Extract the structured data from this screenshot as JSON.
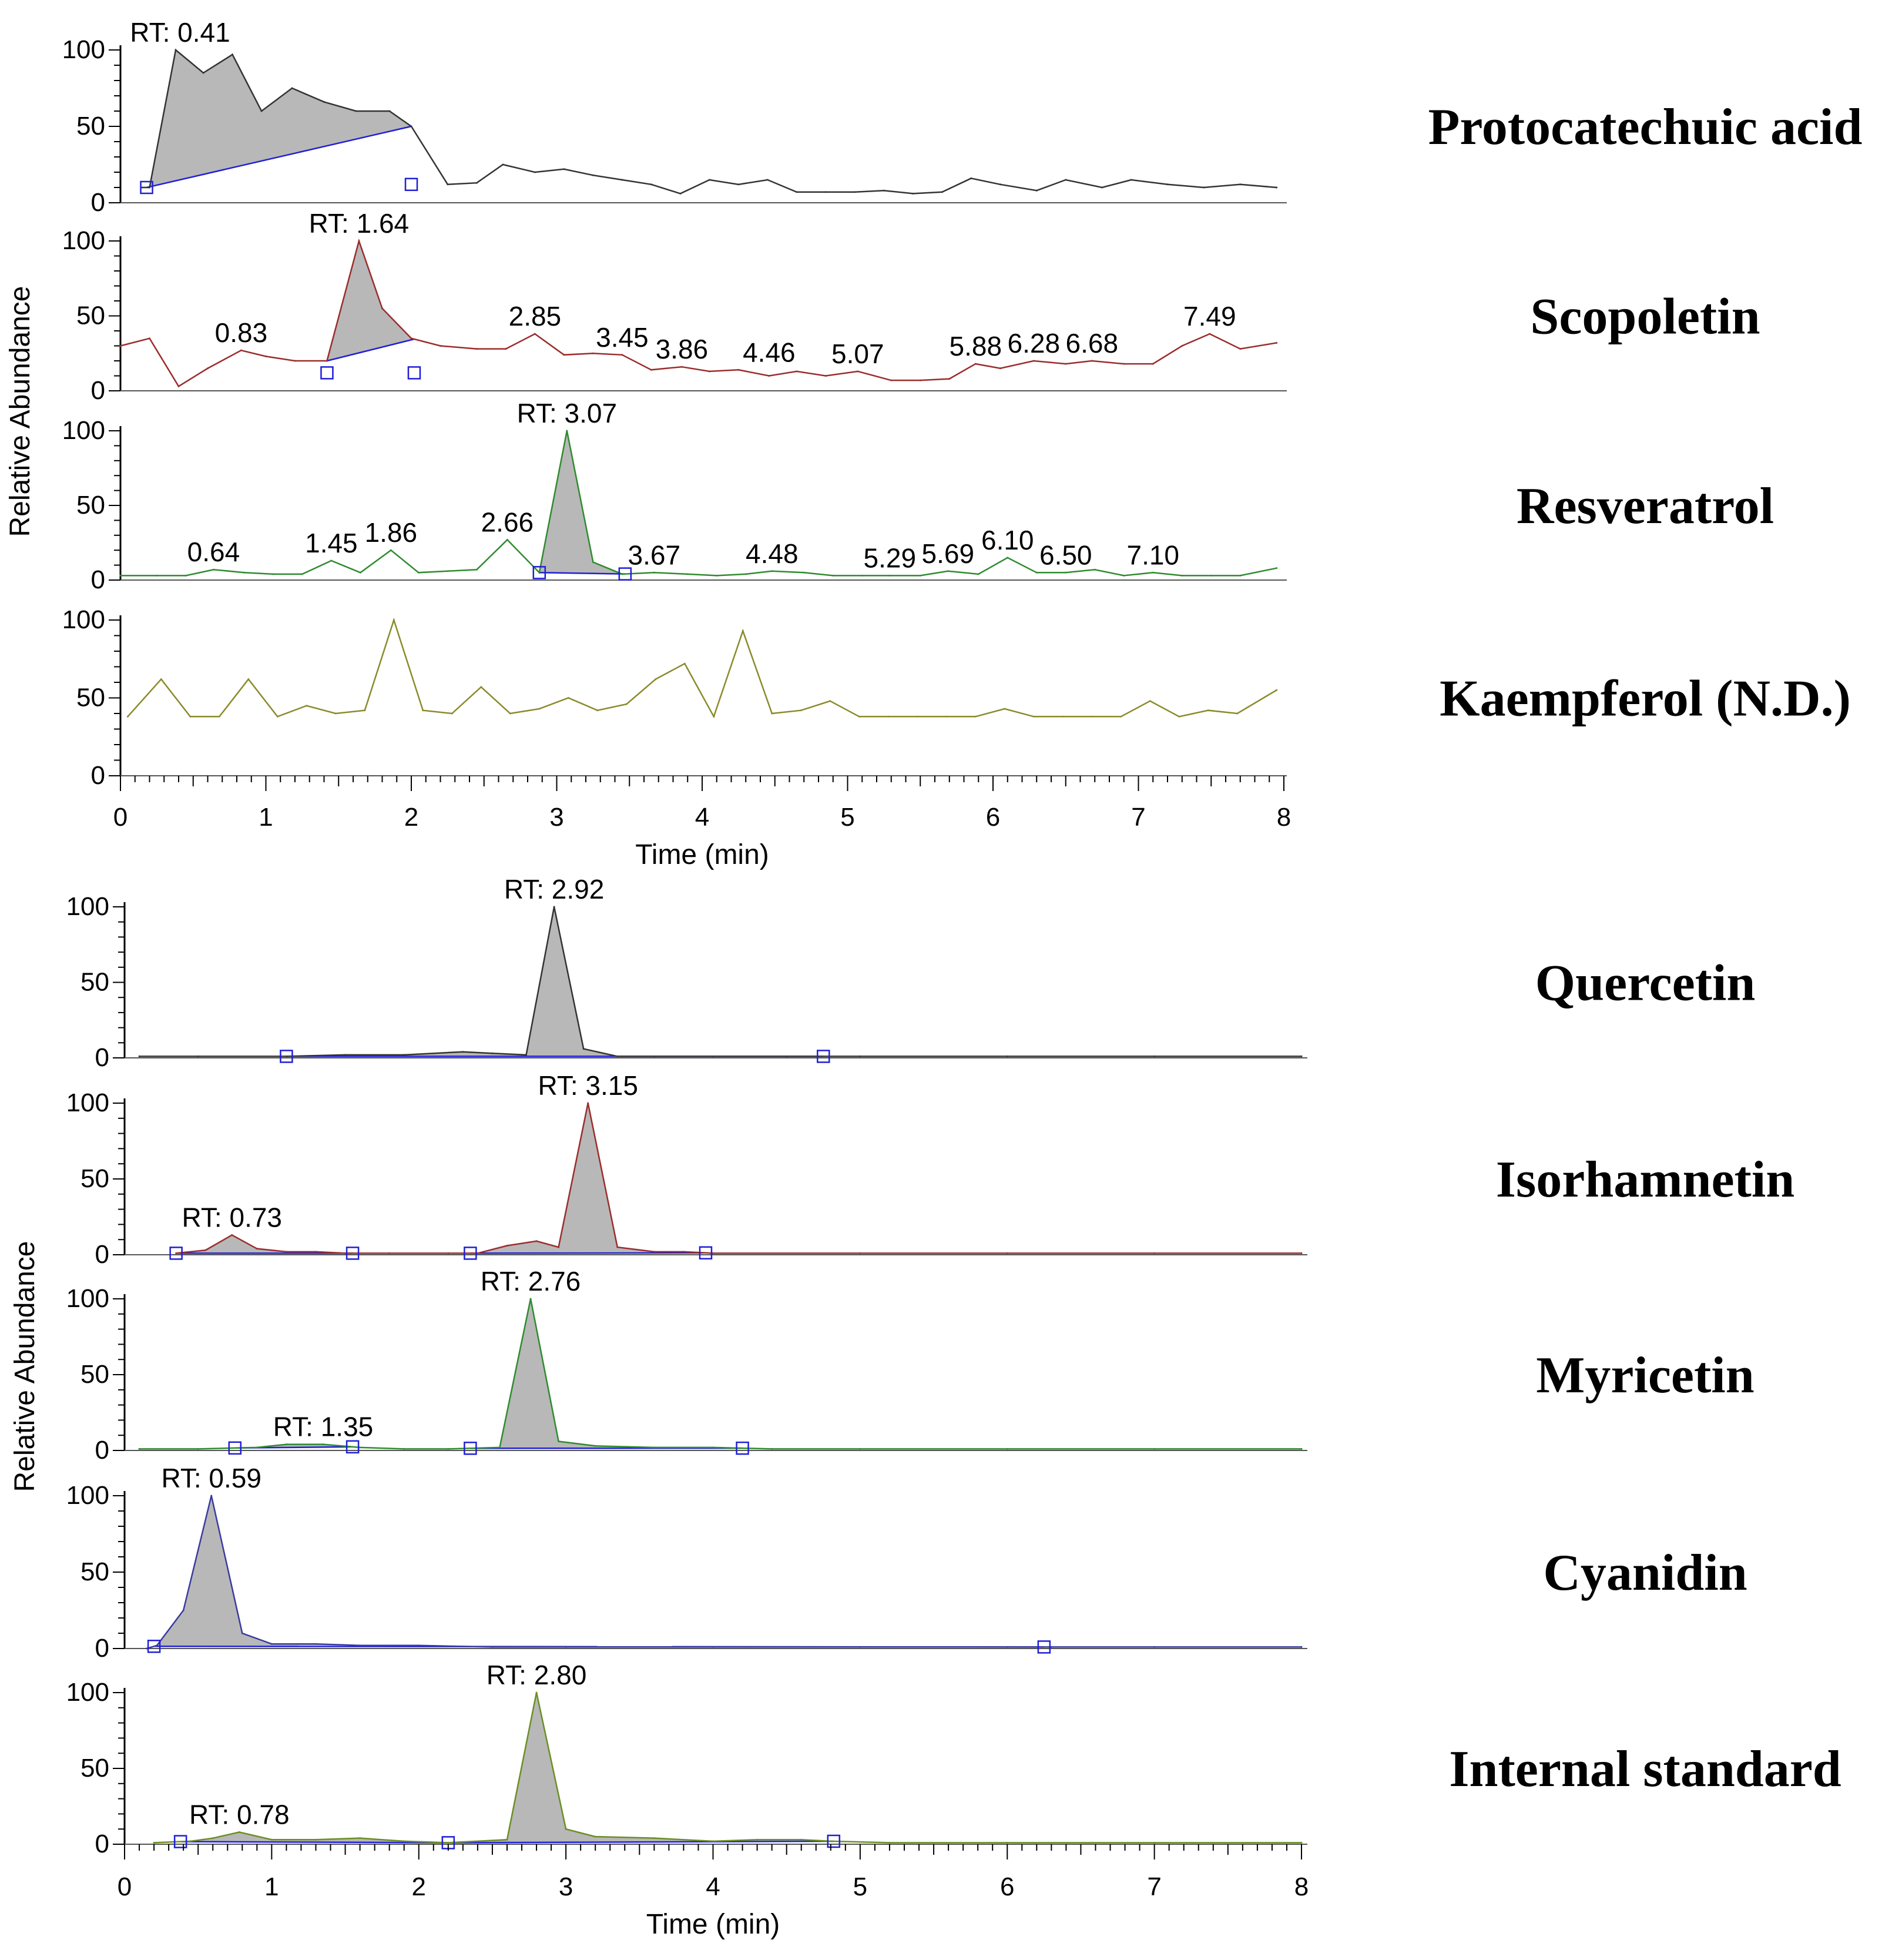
{
  "figure": {
    "colors": {
      "fill": "#b8b8b8",
      "axis": "#000000",
      "baseline": "#1f1fd6"
    },
    "groups": [
      {
        "xlabel": "Time (min)",
        "ylabel": "Relative Abundance",
        "x_range": [
          0,
          8
        ],
        "x_ticks": [
          "0",
          "1",
          "2",
          "3",
          "4",
          "5",
          "6",
          "7",
          "8"
        ],
        "y_ticks": [
          "0",
          "50",
          "100"
        ]
      },
      {
        "xlabel": "Time (min)",
        "ylabel": "Relative Abundance",
        "x_range": [
          0,
          8
        ],
        "x_ticks": [
          "0",
          "1",
          "2",
          "3",
          "4",
          "5",
          "6",
          "7",
          "8"
        ],
        "y_ticks": [
          "0",
          "50",
          "100"
        ]
      }
    ]
  },
  "chart_data": [
    {
      "type": "line",
      "group": 0,
      "title": "Protocatechuic acid",
      "color": "#333333",
      "xlabel": "Time (min)",
      "ylabel": "Relative Abundance",
      "xlim": [
        0,
        8
      ],
      "ylim": [
        0,
        100
      ],
      "x": [
        0.15,
        0.2,
        0.38,
        0.57,
        0.77,
        0.97,
        1.18,
        1.4,
        1.62,
        1.85,
        2.0,
        2.25,
        2.45,
        2.63,
        2.85,
        3.05,
        3.25,
        3.45,
        3.65,
        3.85,
        4.05,
        4.25,
        4.45,
        4.65,
        4.85,
        5.05,
        5.25,
        5.45,
        5.65,
        5.85,
        6.05,
        6.3,
        6.5,
        6.75,
        6.95,
        7.2,
        7.45,
        7.7,
        7.95
      ],
      "y": [
        10,
        10,
        100,
        85,
        97,
        60,
        75,
        66,
        60,
        60,
        50,
        12,
        13,
        25,
        20,
        22,
        18,
        15,
        12,
        6,
        15,
        12,
        15,
        7,
        7,
        7,
        8,
        6,
        7,
        16,
        12,
        8,
        15,
        10,
        15,
        12,
        10,
        12,
        10
      ],
      "peak_labels": [
        {
          "x": 0.41,
          "y": 100,
          "text": "RT: 0.41"
        }
      ],
      "shaded": [
        {
          "from": 0.18,
          "to": 2.0
        }
      ],
      "boundary_markers": [
        0.18,
        2.0
      ]
    },
    {
      "type": "line",
      "group": 0,
      "title": "Scopoletin",
      "color": "#9b2c2c",
      "xlabel": "Time (min)",
      "ylabel": "Relative Abundance",
      "xlim": [
        0,
        8
      ],
      "ylim": [
        0,
        100
      ],
      "x": [
        0.0,
        0.2,
        0.4,
        0.6,
        0.83,
        1.0,
        1.2,
        1.42,
        1.64,
        1.8,
        2.0,
        2.2,
        2.45,
        2.65,
        2.85,
        3.05,
        3.25,
        3.45,
        3.65,
        3.86,
        4.05,
        4.25,
        4.46,
        4.65,
        4.85,
        5.07,
        5.3,
        5.5,
        5.7,
        5.88,
        6.05,
        6.28,
        6.5,
        6.68,
        6.9,
        7.1,
        7.3,
        7.49,
        7.7,
        7.95
      ],
      "y": [
        30,
        35,
        3,
        15,
        27,
        23,
        20,
        20,
        100,
        55,
        35,
        30,
        28,
        28,
        38,
        24,
        25,
        24,
        14,
        16,
        13,
        14,
        10,
        13,
        10,
        13,
        7,
        7,
        8,
        18,
        15,
        20,
        18,
        20,
        18,
        18,
        30,
        38,
        28,
        32
      ],
      "peak_labels": [
        {
          "x": 1.64,
          "y": 100,
          "text": "RT: 1.64"
        },
        {
          "x": 0.83,
          "y": 27,
          "text": "0.83"
        },
        {
          "x": 2.85,
          "y": 38,
          "text": "2.85"
        },
        {
          "x": 3.45,
          "y": 24,
          "text": "3.45"
        },
        {
          "x": 3.86,
          "y": 16,
          "text": "3.86"
        },
        {
          "x": 4.46,
          "y": 14,
          "text": "4.46"
        },
        {
          "x": 5.07,
          "y": 13,
          "text": "5.07"
        },
        {
          "x": 5.88,
          "y": 18,
          "text": "5.88"
        },
        {
          "x": 6.28,
          "y": 20,
          "text": "6.28"
        },
        {
          "x": 6.68,
          "y": 20,
          "text": "6.68"
        },
        {
          "x": 7.49,
          "y": 38,
          "text": "7.49"
        }
      ],
      "shaded": [
        {
          "from": 1.42,
          "to": 2.02
        }
      ],
      "boundary_markers": [
        1.42,
        2.02
      ]
    },
    {
      "type": "line",
      "group": 0,
      "title": "Resveratrol",
      "color": "#2e8b2e",
      "xlabel": "Time (min)",
      "ylabel": "Relative Abundance",
      "xlim": [
        0,
        8
      ],
      "ylim": [
        0,
        100
      ],
      "x": [
        0.0,
        0.25,
        0.45,
        0.64,
        0.85,
        1.05,
        1.25,
        1.45,
        1.65,
        1.86,
        2.05,
        2.25,
        2.45,
        2.66,
        2.88,
        3.07,
        3.25,
        3.45,
        3.67,
        3.9,
        4.1,
        4.3,
        4.48,
        4.7,
        4.9,
        5.1,
        5.29,
        5.5,
        5.69,
        5.9,
        6.1,
        6.3,
        6.5,
        6.7,
        6.9,
        7.1,
        7.3,
        7.5,
        7.7,
        7.95
      ],
      "y": [
        3,
        3,
        3,
        7,
        5,
        4,
        4,
        13,
        5,
        20,
        5,
        6,
        7,
        27,
        5,
        100,
        12,
        4,
        5,
        4,
        3,
        4,
        6,
        5,
        3,
        3,
        3,
        3,
        6,
        4,
        15,
        5,
        5,
        7,
        3,
        5,
        3,
        3,
        3,
        8
      ],
      "peak_labels": [
        {
          "x": 3.07,
          "y": 100,
          "text": "RT: 3.07"
        },
        {
          "x": 0.64,
          "y": 7,
          "text": "0.64"
        },
        {
          "x": 1.45,
          "y": 13,
          "text": "1.45"
        },
        {
          "x": 1.86,
          "y": 20,
          "text": "1.86"
        },
        {
          "x": 2.66,
          "y": 27,
          "text": "2.66"
        },
        {
          "x": 3.67,
          "y": 5,
          "text": "3.67"
        },
        {
          "x": 4.48,
          "y": 6,
          "text": "4.48"
        },
        {
          "x": 5.29,
          "y": 3,
          "text": "5.29"
        },
        {
          "x": 5.69,
          "y": 6,
          "text": "5.69"
        },
        {
          "x": 6.1,
          "y": 15,
          "text": "6.10"
        },
        {
          "x": 6.5,
          "y": 5,
          "text": "6.50"
        },
        {
          "x": 7.1,
          "y": 5,
          "text": "7.10"
        }
      ],
      "shaded": [
        {
          "from": 2.88,
          "to": 3.47
        }
      ],
      "boundary_markers": [
        2.88,
        3.47
      ]
    },
    {
      "type": "line",
      "group": 0,
      "title": "Kaempferol (N.D.)",
      "color": "#8a8a2a",
      "xlabel": "Time (min)",
      "ylabel": "Relative Abundance",
      "xlim": [
        0,
        8
      ],
      "ylim": [
        0,
        100
      ],
      "x": [
        0.05,
        0.28,
        0.48,
        0.68,
        0.88,
        1.08,
        1.28,
        1.48,
        1.68,
        1.88,
        2.08,
        2.28,
        2.48,
        2.68,
        2.88,
        3.08,
        3.28,
        3.48,
        3.68,
        3.88,
        4.08,
        4.28,
        4.48,
        4.68,
        4.88,
        5.08,
        5.28,
        5.48,
        5.68,
        5.88,
        6.08,
        6.28,
        6.48,
        6.68,
        6.88,
        7.08,
        7.28,
        7.48,
        7.68,
        7.95
      ],
      "y": [
        38,
        62,
        38,
        38,
        62,
        38,
        45,
        40,
        42,
        100,
        42,
        40,
        57,
        40,
        43,
        50,
        42,
        46,
        62,
        72,
        38,
        93,
        40,
        42,
        48,
        38,
        38,
        38,
        38,
        38,
        43,
        38,
        38,
        38,
        38,
        48,
        38,
        42,
        40,
        55
      ],
      "peak_labels": [],
      "shaded": [],
      "boundary_markers": []
    },
    {
      "type": "line",
      "group": 1,
      "title": "Quercetin",
      "color": "#333333",
      "xlabel": "Time (min)",
      "ylabel": "Relative Abundance",
      "xlim": [
        0,
        8
      ],
      "ylim": [
        0,
        100
      ],
      "x": [
        0.1,
        0.5,
        1.1,
        1.5,
        1.9,
        2.3,
        2.5,
        2.73,
        2.92,
        3.12,
        3.35,
        3.6,
        4.0,
        4.5,
        5.0,
        6.0,
        7.0,
        8.0
      ],
      "y": [
        1,
        1,
        1,
        2,
        2,
        4,
        3,
        2,
        100,
        6,
        1,
        1,
        1,
        1,
        1,
        1,
        1,
        1
      ],
      "peak_labels": [
        {
          "x": 2.92,
          "y": 100,
          "text": "RT: 2.92"
        }
      ],
      "shaded": [
        {
          "from": 1.1,
          "to": 4.75
        }
      ],
      "boundary_markers": [
        1.1,
        4.75
      ]
    },
    {
      "type": "line",
      "group": 1,
      "title": "Isorhamnetin",
      "color": "#9b2c2c",
      "xlabel": "Time (min)",
      "ylabel": "Relative Abundance",
      "xlim": [
        0,
        8
      ],
      "ylim": [
        0,
        100
      ],
      "x": [
        0.35,
        0.55,
        0.73,
        0.9,
        1.1,
        1.3,
        1.5,
        1.8,
        2.2,
        2.4,
        2.6,
        2.8,
        2.95,
        3.15,
        3.35,
        3.6,
        3.8,
        4.0,
        5.0,
        6.0,
        7.0,
        8.0
      ],
      "y": [
        1,
        3,
        13,
        4,
        2,
        2,
        1,
        1,
        1,
        1,
        6,
        9,
        5,
        100,
        5,
        2,
        2,
        1,
        1,
        1,
        1,
        1
      ],
      "peak_labels": [
        {
          "x": 3.15,
          "y": 100,
          "text": "RT: 3.15"
        },
        {
          "x": 0.73,
          "y": 13,
          "text": "RT: 0.73"
        }
      ],
      "shaded": [
        {
          "from": 0.35,
          "to": 1.55
        },
        {
          "from": 2.35,
          "to": 3.95
        }
      ],
      "boundary_markers": [
        0.35,
        1.55,
        2.35,
        3.95
      ]
    },
    {
      "type": "line",
      "group": 1,
      "title": "Myricetin",
      "color": "#2e8b2e",
      "xlabel": "Time (min)",
      "ylabel": "Relative Abundance",
      "xlim": [
        0,
        8
      ],
      "ylim": [
        0,
        100
      ],
      "x": [
        0.1,
        0.5,
        0.9,
        1.1,
        1.35,
        1.6,
        1.9,
        2.2,
        2.55,
        2.76,
        2.95,
        3.2,
        3.6,
        4.0,
        4.4,
        5.0,
        6.0,
        7.0,
        8.0
      ],
      "y": [
        1,
        1,
        2,
        4,
        4,
        2,
        1,
        1,
        2,
        100,
        6,
        3,
        2,
        2,
        1,
        1,
        1,
        1,
        1
      ],
      "peak_labels": [
        {
          "x": 2.76,
          "y": 100,
          "text": "RT: 2.76"
        },
        {
          "x": 1.35,
          "y": 4,
          "text": "RT: 1.35"
        }
      ],
      "shaded": [
        {
          "from": 0.75,
          "to": 1.55
        },
        {
          "from": 2.35,
          "to": 4.2
        }
      ],
      "boundary_markers": [
        0.75,
        1.55,
        2.35,
        4.2
      ]
    },
    {
      "type": "line",
      "group": 1,
      "title": "Cyanidin",
      "color": "#3a3aa0",
      "xlabel": "Time (min)",
      "ylabel": "Relative Abundance",
      "xlim": [
        0,
        8
      ],
      "ylim": [
        0,
        100
      ],
      "x": [
        0.15,
        0.22,
        0.4,
        0.59,
        0.8,
        1.0,
        1.3,
        1.6,
        2.0,
        2.5,
        3.0,
        4.0,
        5.0,
        6.0,
        6.3,
        7.0,
        8.0
      ],
      "y": [
        0,
        2,
        25,
        100,
        10,
        3,
        3,
        2,
        2,
        1,
        1,
        1,
        1,
        1,
        1,
        1,
        1
      ],
      "peak_labels": [
        {
          "x": 0.59,
          "y": 100,
          "text": "RT: 0.59"
        }
      ],
      "shaded": [
        {
          "from": 0.2,
          "to": 6.25
        }
      ],
      "boundary_markers": [
        0.2,
        6.25
      ]
    },
    {
      "type": "line",
      "group": 1,
      "title": "Internal standard",
      "color": "#6b8e23",
      "xlabel": "Time (min)",
      "ylabel": "Relative Abundance",
      "xlim": [
        0,
        8
      ],
      "ylim": [
        0,
        100
      ],
      "x": [
        0.2,
        0.45,
        0.6,
        0.78,
        1.0,
        1.3,
        1.6,
        1.9,
        2.2,
        2.6,
        2.8,
        3.0,
        3.2,
        3.6,
        4.0,
        4.3,
        4.6,
        4.8,
        5.2,
        6.0,
        7.0,
        8.0
      ],
      "y": [
        1,
        2,
        4,
        8,
        3,
        3,
        4,
        2,
        1,
        3,
        100,
        10,
        5,
        4,
        2,
        3,
        3,
        2,
        1,
        1,
        1,
        1
      ],
      "peak_labels": [
        {
          "x": 2.8,
          "y": 100,
          "text": "RT: 2.80"
        },
        {
          "x": 0.78,
          "y": 8,
          "text": "RT: 0.78"
        }
      ],
      "shaded": [
        {
          "from": 0.38,
          "to": 2.2
        },
        {
          "from": 2.2,
          "to": 4.82
        }
      ],
      "boundary_markers": [
        0.38,
        2.2,
        4.82
      ]
    }
  ]
}
